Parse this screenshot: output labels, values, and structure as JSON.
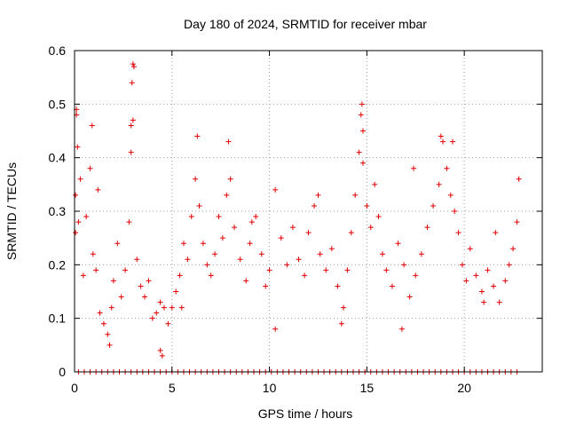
{
  "chart_data": {
    "type": "scatter",
    "title": "Day 180 of 2024, SRMTID for receiver mbar",
    "xlabel": "GPS time / hours",
    "ylabel": "SRMTID / TECUs",
    "xlim": [
      0,
      24
    ],
    "ylim": [
      0,
      0.6
    ],
    "xticks": [
      0,
      5,
      10,
      15,
      20
    ],
    "yticks": [
      0,
      0.1,
      0.2,
      0.3,
      0.4,
      0.5,
      0.6
    ],
    "xtick_labels": [
      "0",
      "5",
      "10",
      "15",
      "20"
    ],
    "ytick_labels": [
      "0",
      "0.1",
      "0.2",
      "0.3",
      "0.4",
      "0.5",
      "0.6"
    ],
    "grid": true,
    "marker": "+",
    "colors": {
      "points": "#e00000",
      "grid": "#a0a0a0",
      "axis": "#000000"
    },
    "series": [
      {
        "name": "SRMTID",
        "x": [
          0.05,
          0.1,
          0.15,
          0.2,
          0.3,
          0.45,
          0.6,
          0.8,
          0.95,
          1.1,
          1.3,
          1.5,
          1.7,
          1.9,
          2.0,
          2.2,
          2.4,
          2.6,
          2.8,
          2.9,
          3.0,
          3.2,
          3.4,
          3.6,
          3.8,
          4.0,
          4.2,
          4.4,
          4.6,
          4.8,
          5.0,
          5.2,
          5.4,
          5.6,
          5.8,
          6.0,
          6.2,
          6.4,
          6.6,
          6.8,
          7.0,
          7.2,
          7.4,
          7.6,
          7.8,
          8.0,
          8.2,
          8.5,
          8.8,
          9.0,
          9.3,
          9.6,
          9.8,
          10.0,
          10.3,
          10.6,
          10.9,
          11.2,
          11.5,
          11.8,
          12.0,
          12.3,
          12.6,
          12.9,
          13.2,
          13.5,
          13.8,
          14.0,
          14.2,
          14.4,
          14.6,
          14.7,
          14.8,
          15.0,
          15.2,
          15.4,
          15.6,
          15.8,
          16.0,
          16.3,
          16.6,
          16.9,
          17.2,
          17.5,
          17.8,
          18.1,
          18.4,
          18.7,
          18.9,
          19.1,
          19.3,
          19.5,
          19.7,
          19.9,
          20.1,
          20.3,
          20.6,
          20.9,
          21.2,
          21.5,
          21.8,
          22.1,
          22.3,
          22.5,
          22.7,
          22.8,
          3.0,
          3.05,
          2.95,
          0.1,
          14.75,
          14.8,
          18.8,
          19.4,
          7.9,
          6.3,
          0.05,
          2.9,
          4.4,
          1.8,
          4.5,
          0.9,
          1.2,
          5.5,
          9.1,
          10.3,
          12.5,
          13.7,
          16.8,
          17.4,
          21.0,
          21.6
        ],
        "y": [
          0.33,
          0.48,
          0.42,
          0.28,
          0.36,
          0.18,
          0.29,
          0.38,
          0.22,
          0.19,
          0.11,
          0.09,
          0.07,
          0.12,
          0.17,
          0.24,
          0.14,
          0.19,
          0.28,
          0.41,
          0.47,
          0.21,
          0.16,
          0.14,
          0.17,
          0.1,
          0.11,
          0.13,
          0.12,
          0.09,
          0.12,
          0.15,
          0.18,
          0.24,
          0.21,
          0.29,
          0.36,
          0.31,
          0.24,
          0.2,
          0.18,
          0.22,
          0.29,
          0.25,
          0.33,
          0.36,
          0.27,
          0.21,
          0.17,
          0.24,
          0.29,
          0.22,
          0.16,
          0.19,
          0.34,
          0.25,
          0.2,
          0.27,
          0.21,
          0.18,
          0.26,
          0.31,
          0.22,
          0.19,
          0.23,
          0.16,
          0.12,
          0.19,
          0.26,
          0.33,
          0.41,
          0.48,
          0.39,
          0.31,
          0.27,
          0.35,
          0.29,
          0.22,
          0.19,
          0.16,
          0.24,
          0.2,
          0.14,
          0.18,
          0.22,
          0.27,
          0.31,
          0.35,
          0.43,
          0.38,
          0.33,
          0.3,
          0.26,
          0.2,
          0.17,
          0.23,
          0.18,
          0.15,
          0.19,
          0.16,
          0.13,
          0.17,
          0.2,
          0.23,
          0.28,
          0.36,
          0.575,
          0.57,
          0.54,
          0.49,
          0.5,
          0.45,
          0.44,
          0.43,
          0.43,
          0.44,
          0.26,
          0.46,
          0.04,
          0.05,
          0.03,
          0.46,
          0.34,
          0.12,
          0.28,
          0.08,
          0.33,
          0.09,
          0.08,
          0.38,
          0.13,
          0.26
        ],
        "zeros_x": [
          0.2,
          0.5,
          0.8,
          1.1,
          1.4,
          1.7,
          2.0,
          2.3,
          2.6,
          2.9,
          3.2,
          3.5,
          3.8,
          4.1,
          4.4,
          4.7,
          5.0,
          5.3,
          5.6,
          5.9,
          6.2,
          6.5,
          6.8,
          7.1,
          7.4,
          7.7,
          8.0,
          8.3,
          8.6,
          8.9,
          9.2,
          9.5,
          9.8,
          10.1,
          10.4,
          10.7,
          11.0,
          11.3,
          11.6,
          11.9,
          12.2,
          12.5,
          12.8,
          13.1,
          13.4,
          13.7,
          14.0,
          14.3,
          14.6,
          14.9,
          15.2,
          15.5,
          15.8,
          16.1,
          16.4,
          16.7,
          17.0,
          17.3,
          17.6,
          17.9,
          18.2,
          18.5,
          18.8,
          19.1,
          19.4,
          19.7,
          20.0,
          20.3,
          20.6,
          20.9,
          21.2,
          21.5,
          21.8,
          22.1,
          22.4,
          22.7
        ]
      }
    ]
  }
}
